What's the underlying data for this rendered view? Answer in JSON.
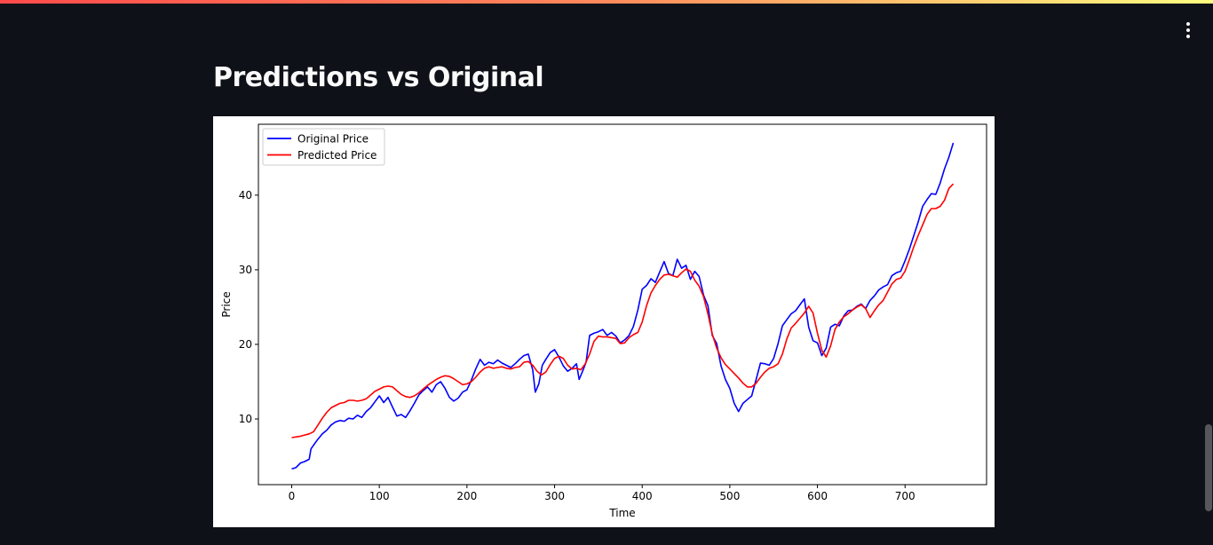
{
  "page": {
    "heading": "Predictions vs Original",
    "menu_icon": "kebab-menu-icon"
  },
  "colors": {
    "background": "#0e1117",
    "original": "#0000ff",
    "predicted": "#ff0000",
    "text": "#fafafa"
  },
  "chart_data": {
    "type": "line",
    "xlabel": "Time",
    "ylabel": "Price",
    "xlim": [
      -38,
      793
    ],
    "ylim": [
      1.2,
      49.5
    ],
    "xticks": [
      0,
      100,
      200,
      300,
      400,
      500,
      600,
      700
    ],
    "yticks": [
      10,
      20,
      30,
      40
    ],
    "legend_position": "top-left",
    "grid": false,
    "series": [
      {
        "name": "Original Price",
        "color": "#0000ff",
        "points": [
          [
            0,
            3.3
          ],
          [
            5,
            3.5
          ],
          [
            10,
            4.1
          ],
          [
            15,
            4.3
          ],
          [
            20,
            4.6
          ],
          [
            22,
            6.0
          ],
          [
            25,
            6.5
          ],
          [
            30,
            7.3
          ],
          [
            35,
            8.0
          ],
          [
            40,
            8.5
          ],
          [
            45,
            9.2
          ],
          [
            50,
            9.6
          ],
          [
            55,
            9.8
          ],
          [
            60,
            9.7
          ],
          [
            65,
            10.1
          ],
          [
            70,
            10.0
          ],
          [
            75,
            10.5
          ],
          [
            80,
            10.2
          ],
          [
            85,
            11.0
          ],
          [
            90,
            11.5
          ],
          [
            95,
            12.3
          ],
          [
            100,
            13.1
          ],
          [
            105,
            12.2
          ],
          [
            110,
            12.9
          ],
          [
            115,
            11.6
          ],
          [
            120,
            10.4
          ],
          [
            125,
            10.6
          ],
          [
            130,
            10.2
          ],
          [
            135,
            11.1
          ],
          [
            140,
            12.1
          ],
          [
            145,
            13.2
          ],
          [
            150,
            13.8
          ],
          [
            155,
            14.3
          ],
          [
            160,
            13.6
          ],
          [
            165,
            14.6
          ],
          [
            170,
            15.0
          ],
          [
            175,
            14.1
          ],
          [
            180,
            12.9
          ],
          [
            185,
            12.4
          ],
          [
            190,
            12.8
          ],
          [
            195,
            13.6
          ],
          [
            200,
            13.9
          ],
          [
            205,
            15.2
          ],
          [
            210,
            16.7
          ],
          [
            215,
            18.0
          ],
          [
            220,
            17.2
          ],
          [
            225,
            17.6
          ],
          [
            230,
            17.4
          ],
          [
            235,
            17.9
          ],
          [
            240,
            17.5
          ],
          [
            245,
            17.2
          ],
          [
            250,
            16.9
          ],
          [
            255,
            17.4
          ],
          [
            260,
            18.0
          ],
          [
            265,
            18.5
          ],
          [
            270,
            18.7
          ],
          [
            275,
            16.6
          ],
          [
            278,
            13.6
          ],
          [
            282,
            14.7
          ],
          [
            286,
            17.2
          ],
          [
            290,
            18.0
          ],
          [
            295,
            18.9
          ],
          [
            300,
            19.3
          ],
          [
            305,
            18.3
          ],
          [
            310,
            17.1
          ],
          [
            315,
            16.4
          ],
          [
            320,
            16.8
          ],
          [
            325,
            17.4
          ],
          [
            328,
            15.3
          ],
          [
            332,
            16.4
          ],
          [
            336,
            17.6
          ],
          [
            340,
            21.2
          ],
          [
            345,
            21.5
          ],
          [
            350,
            21.7
          ],
          [
            355,
            22.0
          ],
          [
            360,
            21.2
          ],
          [
            365,
            21.6
          ],
          [
            370,
            21.1
          ],
          [
            375,
            20.2
          ],
          [
            380,
            20.6
          ],
          [
            385,
            21.2
          ],
          [
            390,
            22.4
          ],
          [
            395,
            24.6
          ],
          [
            400,
            27.4
          ],
          [
            405,
            27.9
          ],
          [
            410,
            28.8
          ],
          [
            415,
            28.3
          ],
          [
            420,
            29.7
          ],
          [
            425,
            31.1
          ],
          [
            430,
            29.5
          ],
          [
            435,
            29.2
          ],
          [
            440,
            31.4
          ],
          [
            445,
            30.2
          ],
          [
            450,
            30.6
          ],
          [
            455,
            28.7
          ],
          [
            460,
            29.8
          ],
          [
            465,
            29.1
          ],
          [
            470,
            26.6
          ],
          [
            475,
            25.2
          ],
          [
            480,
            21.2
          ],
          [
            485,
            20.1
          ],
          [
            490,
            17.1
          ],
          [
            495,
            15.3
          ],
          [
            500,
            14.1
          ],
          [
            505,
            12.1
          ],
          [
            510,
            11.0
          ],
          [
            515,
            12.1
          ],
          [
            520,
            12.6
          ],
          [
            525,
            13.1
          ],
          [
            530,
            15.3
          ],
          [
            535,
            17.5
          ],
          [
            540,
            17.4
          ],
          [
            545,
            17.2
          ],
          [
            550,
            18.1
          ],
          [
            555,
            20.1
          ],
          [
            560,
            22.5
          ],
          [
            565,
            23.3
          ],
          [
            570,
            24.1
          ],
          [
            575,
            24.5
          ],
          [
            580,
            25.3
          ],
          [
            585,
            26.1
          ],
          [
            590,
            22.3
          ],
          [
            595,
            20.5
          ],
          [
            600,
            20.2
          ],
          [
            605,
            18.5
          ],
          [
            610,
            19.5
          ],
          [
            615,
            22.3
          ],
          [
            620,
            22.7
          ],
          [
            625,
            22.5
          ],
          [
            630,
            23.8
          ],
          [
            635,
            24.5
          ],
          [
            640,
            24.6
          ],
          [
            645,
            25.1
          ],
          [
            650,
            25.4
          ],
          [
            655,
            24.8
          ],
          [
            660,
            25.9
          ],
          [
            665,
            26.5
          ],
          [
            670,
            27.3
          ],
          [
            675,
            27.7
          ],
          [
            680,
            28.0
          ],
          [
            685,
            29.2
          ],
          [
            690,
            29.6
          ],
          [
            695,
            29.8
          ],
          [
            700,
            31.2
          ],
          [
            705,
            32.8
          ],
          [
            710,
            34.6
          ],
          [
            715,
            36.4
          ],
          [
            720,
            38.5
          ],
          [
            725,
            39.4
          ],
          [
            730,
            40.2
          ],
          [
            735,
            40.1
          ],
          [
            740,
            41.6
          ],
          [
            745,
            43.5
          ],
          [
            750,
            45.1
          ],
          [
            755,
            47.0
          ]
        ]
      },
      {
        "name": "Predicted Price",
        "color": "#ff0000",
        "points": [
          [
            0,
            7.5
          ],
          [
            10,
            7.7
          ],
          [
            20,
            8.0
          ],
          [
            25,
            8.3
          ],
          [
            30,
            9.2
          ],
          [
            35,
            10.1
          ],
          [
            40,
            10.9
          ],
          [
            45,
            11.5
          ],
          [
            50,
            11.8
          ],
          [
            55,
            12.1
          ],
          [
            60,
            12.2
          ],
          [
            65,
            12.5
          ],
          [
            70,
            12.5
          ],
          [
            75,
            12.4
          ],
          [
            80,
            12.5
          ],
          [
            85,
            12.7
          ],
          [
            90,
            13.2
          ],
          [
            95,
            13.7
          ],
          [
            100,
            14.0
          ],
          [
            105,
            14.3
          ],
          [
            110,
            14.4
          ],
          [
            115,
            14.3
          ],
          [
            120,
            13.8
          ],
          [
            125,
            13.3
          ],
          [
            130,
            13.0
          ],
          [
            135,
            12.9
          ],
          [
            140,
            13.1
          ],
          [
            145,
            13.5
          ],
          [
            150,
            14.0
          ],
          [
            155,
            14.5
          ],
          [
            160,
            14.9
          ],
          [
            165,
            15.3
          ],
          [
            170,
            15.6
          ],
          [
            175,
            15.8
          ],
          [
            180,
            15.7
          ],
          [
            185,
            15.4
          ],
          [
            190,
            15.0
          ],
          [
            195,
            14.6
          ],
          [
            200,
            14.7
          ],
          [
            205,
            15.0
          ],
          [
            210,
            15.6
          ],
          [
            215,
            16.3
          ],
          [
            220,
            16.8
          ],
          [
            225,
            17.0
          ],
          [
            230,
            16.8
          ],
          [
            235,
            16.9
          ],
          [
            240,
            17.0
          ],
          [
            245,
            16.8
          ],
          [
            250,
            16.7
          ],
          [
            255,
            16.9
          ],
          [
            260,
            17.0
          ],
          [
            265,
            17.6
          ],
          [
            270,
            17.7
          ],
          [
            275,
            17.2
          ],
          [
            280,
            16.4
          ],
          [
            285,
            15.9
          ],
          [
            290,
            16.3
          ],
          [
            295,
            17.3
          ],
          [
            300,
            18.1
          ],
          [
            305,
            18.4
          ],
          [
            310,
            18.1
          ],
          [
            315,
            17.2
          ],
          [
            320,
            16.7
          ],
          [
            325,
            16.8
          ],
          [
            330,
            16.6
          ],
          [
            335,
            17.4
          ],
          [
            340,
            18.7
          ],
          [
            345,
            20.4
          ],
          [
            350,
            21.1
          ],
          [
            355,
            21.0
          ],
          [
            360,
            21.0
          ],
          [
            365,
            20.9
          ],
          [
            370,
            20.8
          ],
          [
            375,
            20.1
          ],
          [
            380,
            20.2
          ],
          [
            385,
            20.9
          ],
          [
            390,
            21.3
          ],
          [
            395,
            21.6
          ],
          [
            400,
            23.0
          ],
          [
            405,
            25.2
          ],
          [
            410,
            26.9
          ],
          [
            415,
            27.9
          ],
          [
            420,
            28.7
          ],
          [
            425,
            29.3
          ],
          [
            430,
            29.4
          ],
          [
            435,
            29.2
          ],
          [
            440,
            29.0
          ],
          [
            445,
            29.6
          ],
          [
            450,
            30.1
          ],
          [
            455,
            29.8
          ],
          [
            460,
            28.6
          ],
          [
            465,
            27.8
          ],
          [
            470,
            26.4
          ],
          [
            475,
            24.1
          ],
          [
            480,
            21.4
          ],
          [
            485,
            19.5
          ],
          [
            490,
            18.2
          ],
          [
            495,
            17.3
          ],
          [
            500,
            16.7
          ],
          [
            505,
            16.1
          ],
          [
            510,
            15.5
          ],
          [
            515,
            14.8
          ],
          [
            520,
            14.3
          ],
          [
            525,
            14.3
          ],
          [
            530,
            14.8
          ],
          [
            535,
            15.6
          ],
          [
            540,
            16.3
          ],
          [
            545,
            16.8
          ],
          [
            550,
            17.0
          ],
          [
            555,
            17.4
          ],
          [
            560,
            18.7
          ],
          [
            565,
            20.7
          ],
          [
            570,
            22.2
          ],
          [
            575,
            22.8
          ],
          [
            580,
            23.5
          ],
          [
            585,
            24.2
          ],
          [
            590,
            25.1
          ],
          [
            595,
            24.2
          ],
          [
            600,
            21.5
          ],
          [
            605,
            19.2
          ],
          [
            610,
            18.3
          ],
          [
            615,
            19.8
          ],
          [
            620,
            22.0
          ],
          [
            625,
            23.0
          ],
          [
            630,
            23.7
          ],
          [
            635,
            24.1
          ],
          [
            640,
            24.6
          ],
          [
            645,
            25.0
          ],
          [
            650,
            25.3
          ],
          [
            655,
            24.8
          ],
          [
            660,
            23.6
          ],
          [
            665,
            24.5
          ],
          [
            670,
            25.3
          ],
          [
            675,
            25.9
          ],
          [
            680,
            27.0
          ],
          [
            685,
            28.1
          ],
          [
            690,
            28.7
          ],
          [
            695,
            28.9
          ],
          [
            700,
            29.8
          ],
          [
            705,
            31.4
          ],
          [
            710,
            33.1
          ],
          [
            715,
            34.6
          ],
          [
            720,
            36.0
          ],
          [
            725,
            37.4
          ],
          [
            730,
            38.2
          ],
          [
            735,
            38.2
          ],
          [
            740,
            38.5
          ],
          [
            745,
            39.3
          ],
          [
            750,
            40.9
          ],
          [
            755,
            41.5
          ]
        ]
      }
    ]
  }
}
